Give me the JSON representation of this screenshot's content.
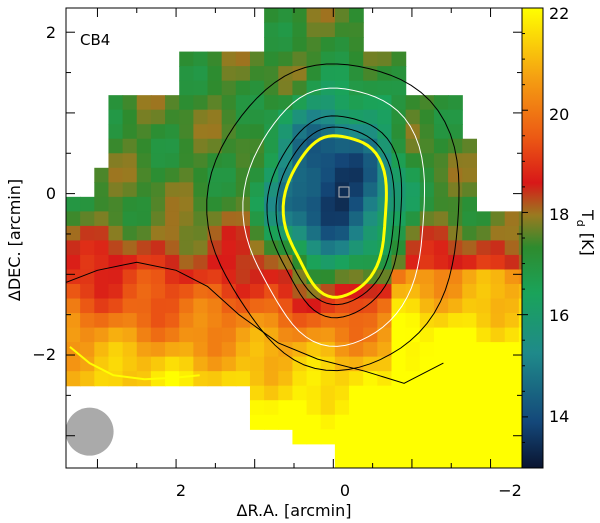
{
  "chart_data": {
    "type": "heatmap",
    "title": "CB4",
    "xlabel": "ΔR.A. [arcmin]",
    "ylabel": "ΔDEC. [arcmin]",
    "xlim": [
      3.4,
      -2.4
    ],
    "ylim": [
      -3.4,
      2.3
    ],
    "x_ticks": [
      2,
      0,
      -2
    ],
    "y_ticks": [
      2,
      0,
      -2
    ],
    "x_tick_labels": [
      "2",
      "0",
      "−2"
    ],
    "y_tick_labels": [
      "2",
      "0",
      "−2"
    ],
    "colorbar": {
      "label": "T",
      "label_subscript": "d",
      "unit": "[K]",
      "range": [
        13,
        22
      ],
      "ticks": [
        14,
        16,
        18,
        20,
        22
      ],
      "tick_labels": [
        "14",
        "16",
        "18",
        "20",
        "22"
      ],
      "colormap": [
        "#0a1430",
        "#14487a",
        "#1f8a8a",
        "#1aa35a",
        "#2e8b2e",
        "#9a7a20",
        "#d81818",
        "#ec5a14",
        "#f5a012",
        "#ffff00"
      ]
    },
    "map": {
      "peak_position": [
        0,
        0
      ],
      "peak_marker": "square",
      "min_temperature": 13,
      "max_temperature": 22
    },
    "contours": [
      {
        "level_label": "outer",
        "color": "#000000",
        "semi_axes": [
          1.6,
          1.9
        ]
      },
      {
        "level_label": "mid",
        "color": "#ffffff",
        "semi_axes": [
          1.15,
          1.6
        ]
      },
      {
        "level_label": "inner-dark",
        "color": "#000000",
        "semi_axes": [
          0.85,
          1.25
        ]
      },
      {
        "level_label": "yellow",
        "color": "#ffff00",
        "semi_axes": [
          0.65,
          1.0
        ]
      }
    ],
    "beam": {
      "x": 3.1,
      "y": -2.95,
      "diameter": 0.6,
      "color": "#aaaaaa"
    },
    "grid": false,
    "legend": "none"
  }
}
